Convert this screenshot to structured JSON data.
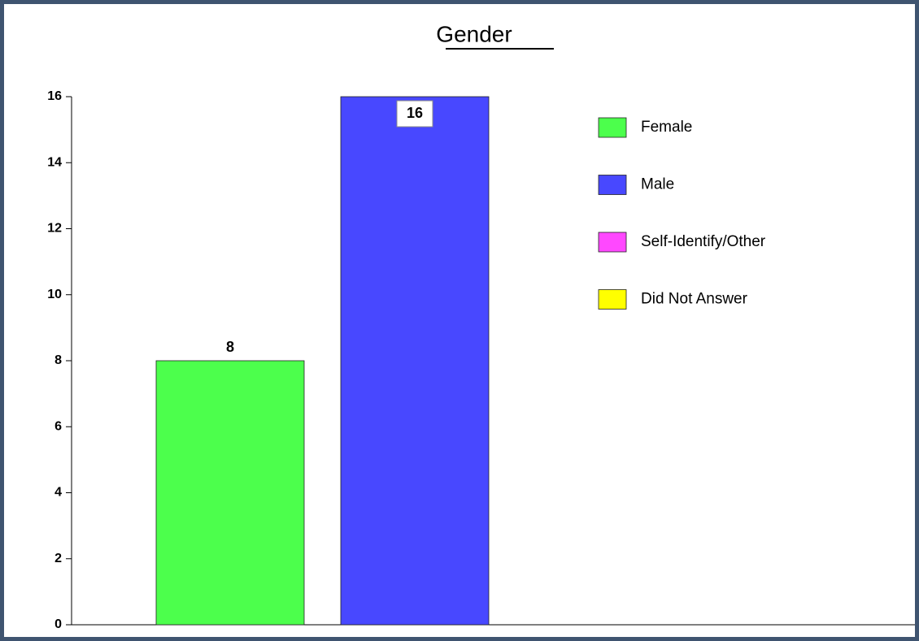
{
  "chart_data": {
    "type": "bar",
    "title": "Gender",
    "series": [
      {
        "name": "Female",
        "color": "#4cff4c",
        "values": [
          8
        ]
      },
      {
        "name": "Male",
        "color": "#4848ff",
        "values": [
          16
        ]
      },
      {
        "name": "Self-Identify/Other",
        "color": "#ff48ff",
        "values": [
          0
        ]
      },
      {
        "name": "Did Not Answer",
        "color": "#ffff00",
        "values": [
          0
        ]
      }
    ],
    "ylim": [
      0,
      16
    ],
    "yticks": [
      0,
      2,
      4,
      6,
      8,
      10,
      12,
      14,
      16
    ],
    "legend": "right"
  }
}
